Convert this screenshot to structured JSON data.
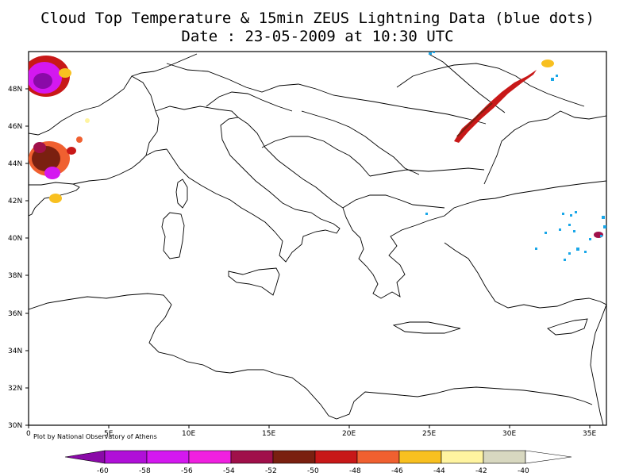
{
  "title": {
    "line1": "Cloud Top Temperature & 15min ZEUS Lightning Data (blue dots)",
    "line2": "Date : 23-05-2009 at 10:30 UTC"
  },
  "credit": "Plot by National Observatory of Athens",
  "map": {
    "lon_range": [
      0,
      36
    ],
    "lat_range": [
      30,
      50
    ],
    "lat_ticks": [
      "30N",
      "32N",
      "34N",
      "36N",
      "38N",
      "40N",
      "42N",
      "44N",
      "46N",
      "48N"
    ],
    "lon_ticks": [
      "0",
      "5E",
      "10E",
      "15E",
      "20E",
      "25E",
      "30E",
      "35E"
    ],
    "lightning_color": "#1aa7e8",
    "coastline_color": "#000000"
  },
  "colorbar": {
    "labels": [
      "-60",
      "-58",
      "-56",
      "-54",
      "-52",
      "-50",
      "-48",
      "-46",
      "-44",
      "-42",
      "-40"
    ],
    "colors": [
      "#8a0aa8",
      "#b010d8",
      "#d418f0",
      "#f020e0",
      "#a0104a",
      "#7a2010",
      "#c81818",
      "#f06030",
      "#f8c020",
      "#fff4a0",
      "#d8d8c0",
      "#ffffff"
    ]
  }
}
